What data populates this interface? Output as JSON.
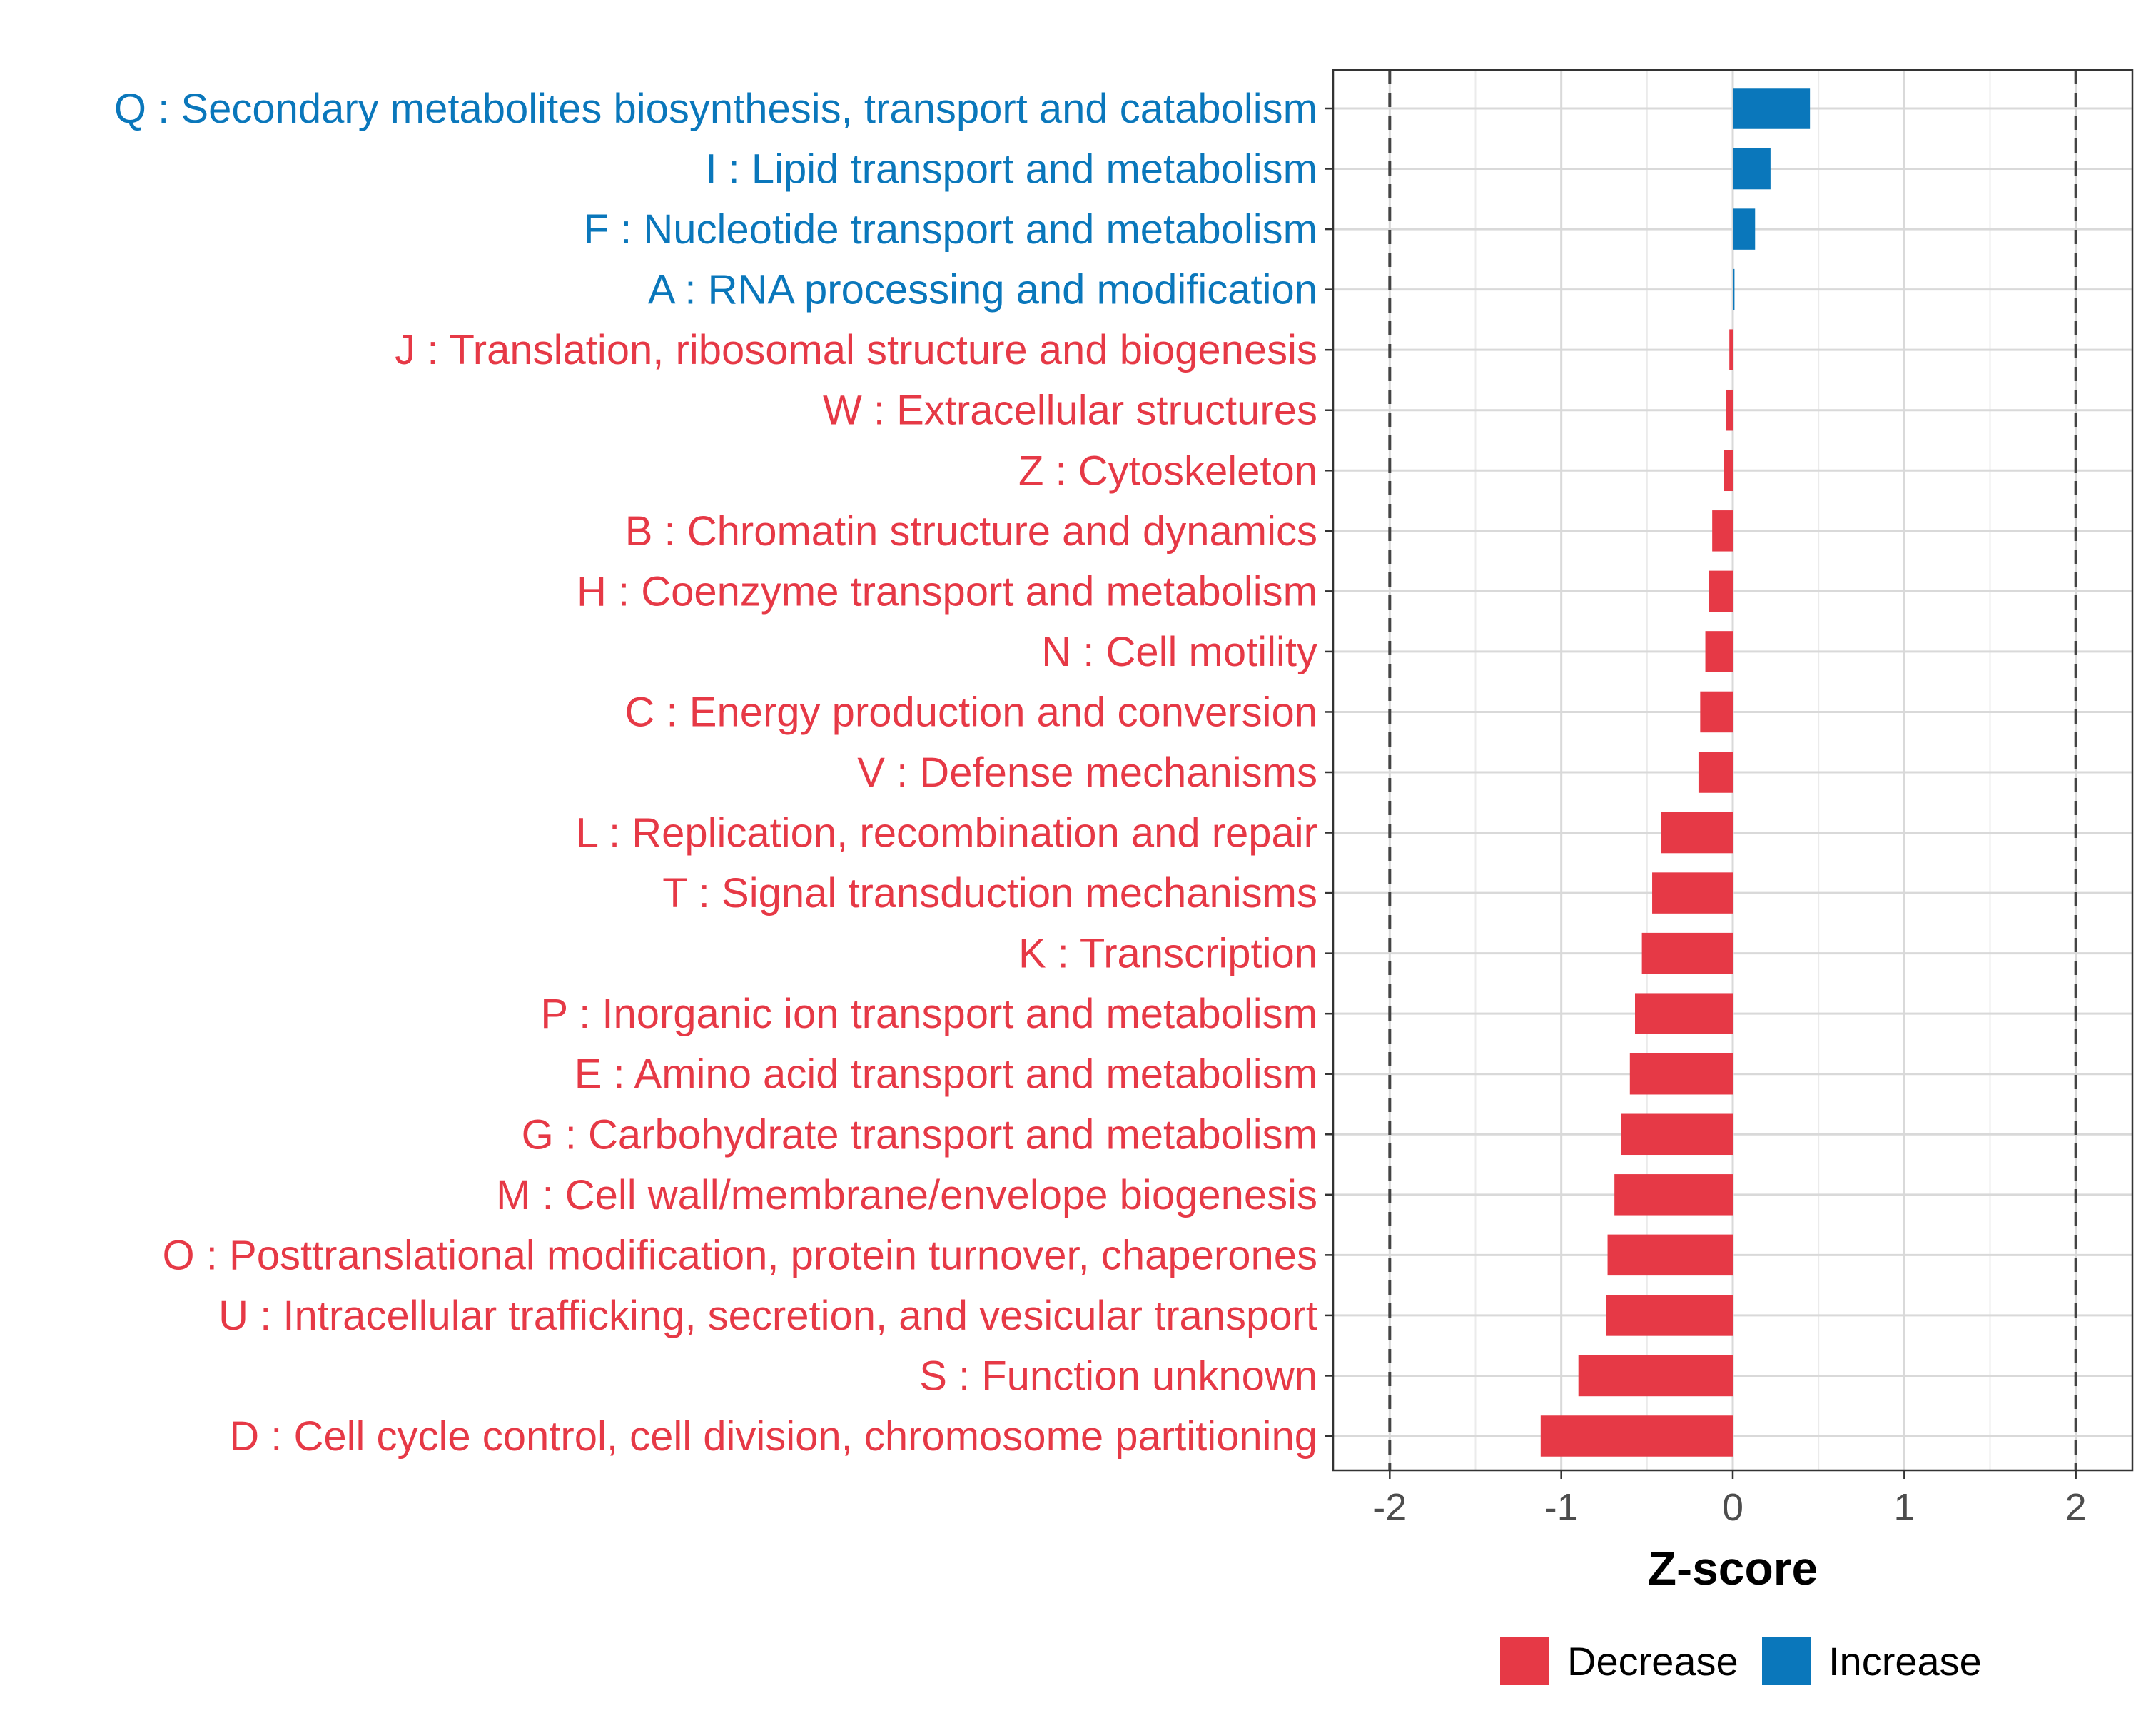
{
  "chart_data": {
    "type": "bar",
    "orientation": "horizontal",
    "xlabel": "Z-score",
    "ylabel": "",
    "xlim": [
      -2.33,
      2.33
    ],
    "x_ticks": [
      -2,
      -1,
      0,
      1,
      2
    ],
    "x_tick_labels": [
      "-2",
      "-1",
      "0",
      "1",
      "2"
    ],
    "reference_lines": [
      -2,
      2
    ],
    "grid": true,
    "legend_position": "bottom",
    "categories": [
      "Q : Secondary metabolites biosynthesis, transport and catabolism",
      "I : Lipid transport and metabolism",
      "F : Nucleotide transport and metabolism",
      "A : RNA processing and modification",
      "J : Translation, ribosomal structure and biogenesis",
      "W : Extracellular structures",
      "Z : Cytoskeleton",
      "B : Chromatin structure and dynamics",
      "H : Coenzyme transport and metabolism",
      "N : Cell motility",
      "C : Energy production and conversion",
      "V : Defense mechanisms",
      "L : Replication, recombination and repair",
      "T : Signal transduction mechanisms",
      "K : Transcription",
      "P : Inorganic ion transport and metabolism",
      "E : Amino acid transport and metabolism",
      "G : Carbohydrate transport and metabolism",
      "M : Cell wall/membrane/envelope biogenesis",
      "O : Posttranslational modification, protein turnover, chaperones",
      "U : Intracellular trafficking, secretion, and vesicular transport",
      "S : Function unknown",
      "D : Cell cycle control, cell division, chromosome partitioning"
    ],
    "values": [
      0.45,
      0.22,
      0.13,
      0.01,
      -0.02,
      -0.04,
      -0.05,
      -0.12,
      -0.14,
      -0.16,
      -0.19,
      -0.2,
      -0.42,
      -0.47,
      -0.53,
      -0.57,
      -0.6,
      -0.65,
      -0.69,
      -0.73,
      -0.74,
      -0.9,
      -1.12
    ],
    "series": [
      {
        "name": "Decrease",
        "color": "#e63946"
      },
      {
        "name": "Increase",
        "color": "#0a77bb"
      }
    ]
  },
  "legend": {
    "decrease_label": "Decrease",
    "increase_label": "Increase"
  }
}
